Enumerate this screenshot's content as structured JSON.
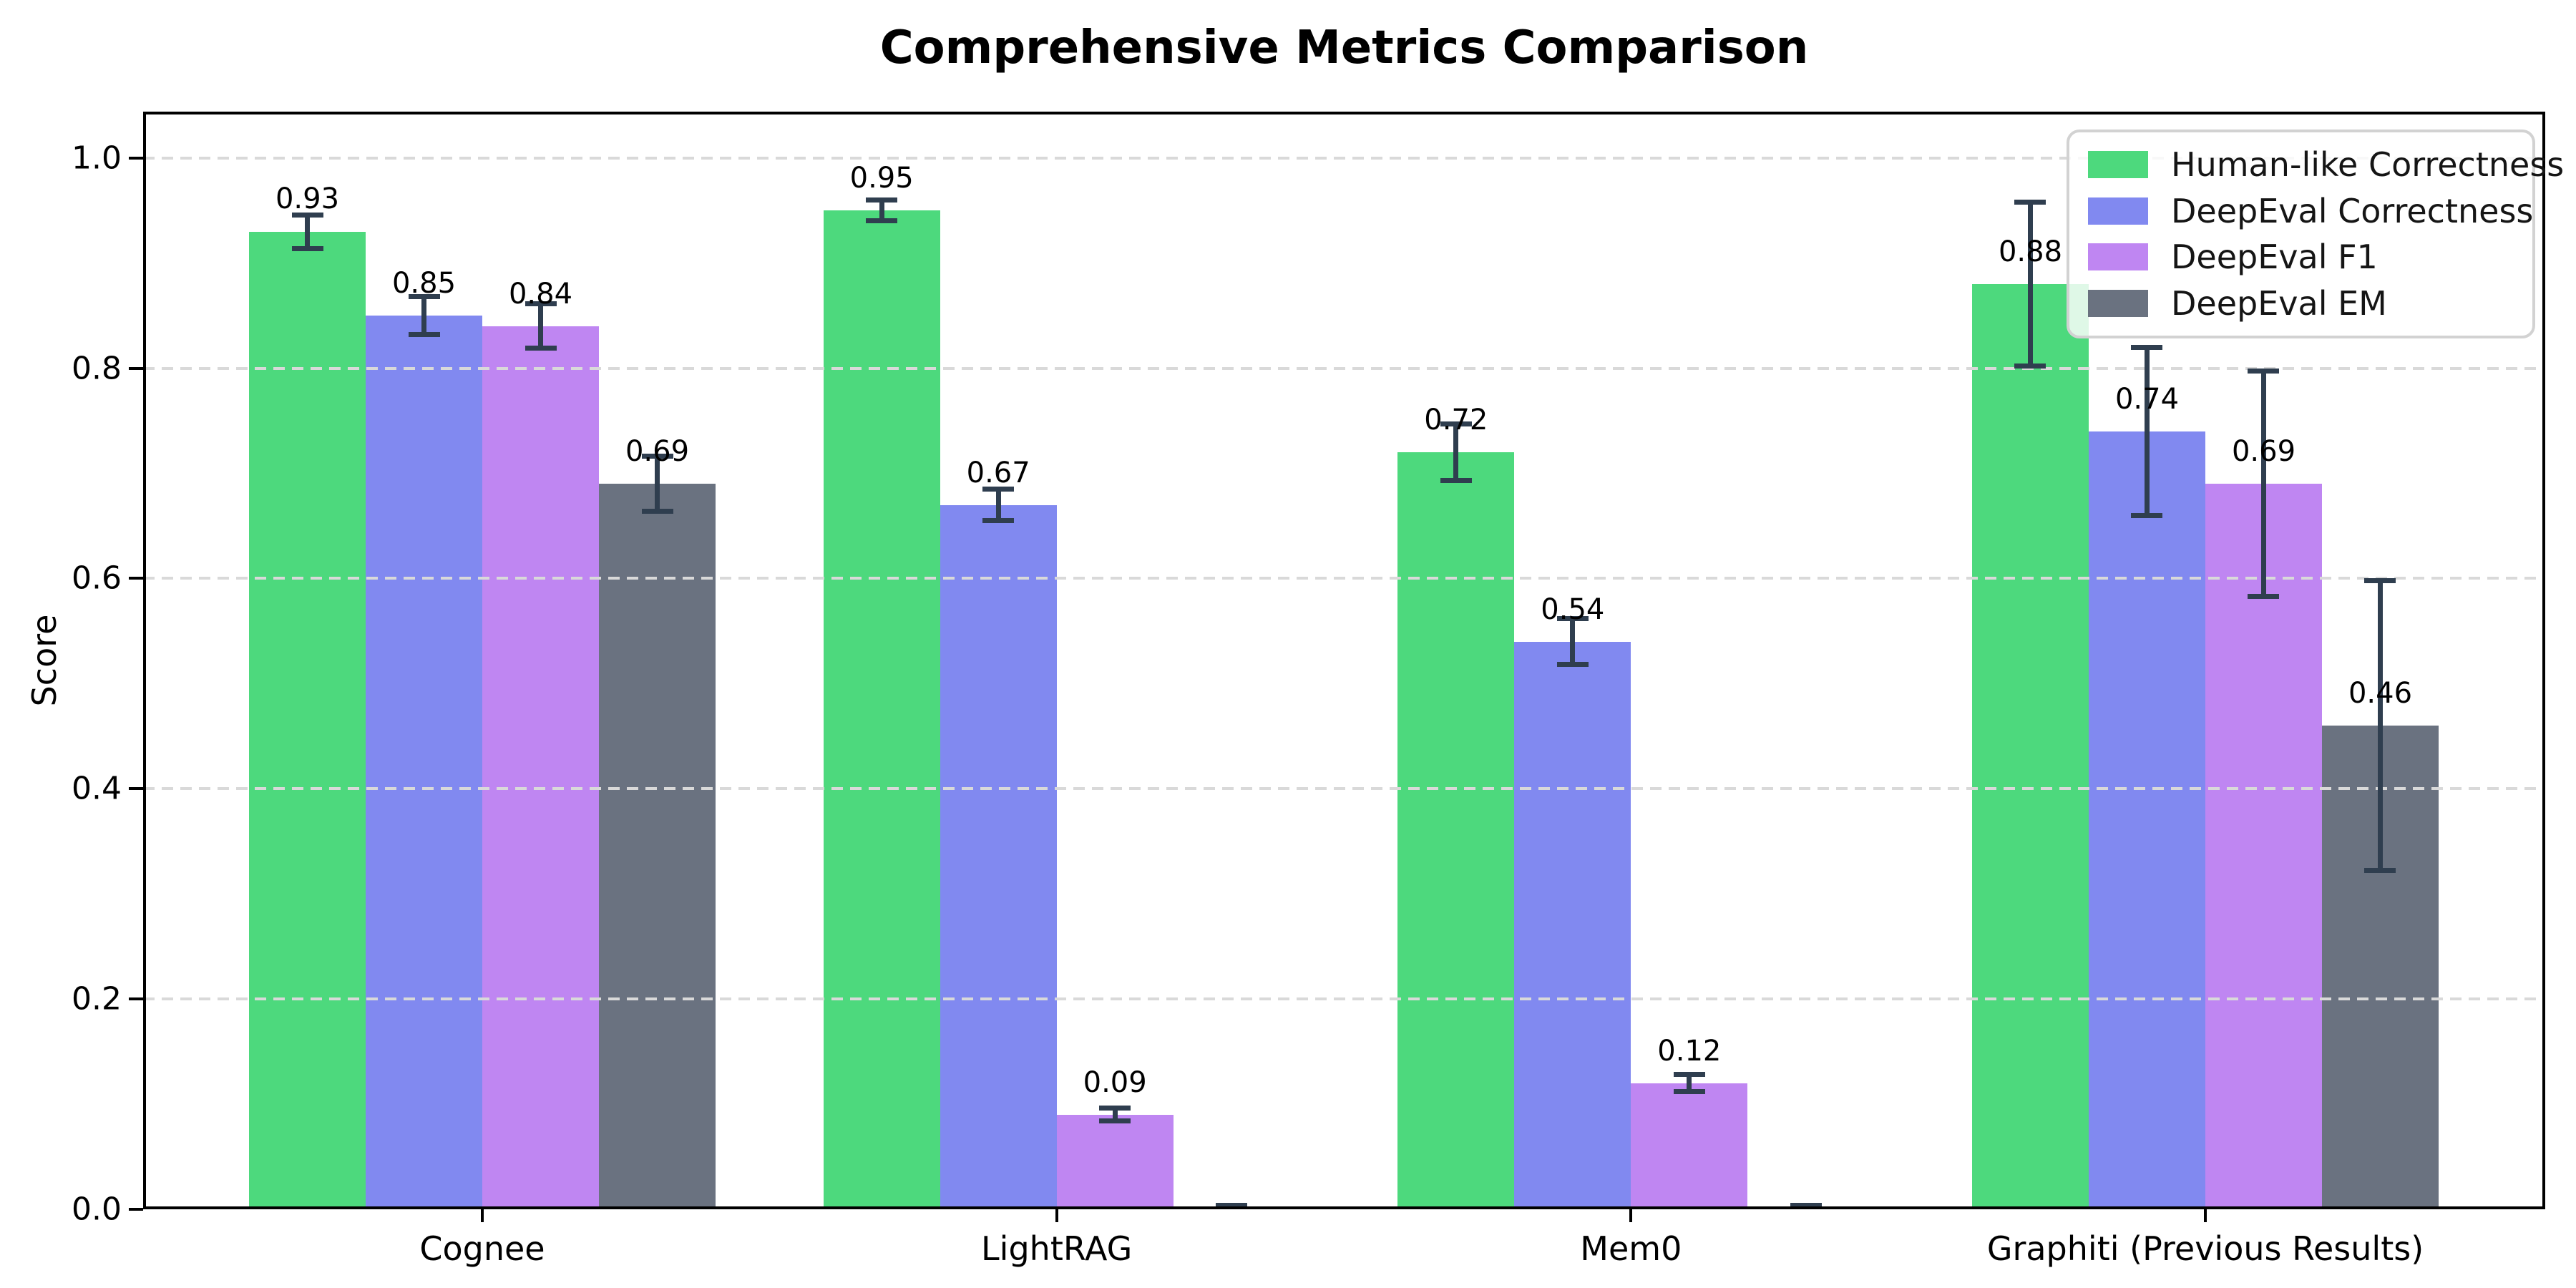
{
  "chart_data": {
    "type": "bar",
    "title": "Comprehensive Metrics Comparison",
    "ylabel": "Score",
    "categories": [
      "Cognee",
      "LightRAG",
      "Mem0",
      "Graphiti (Previous Results)"
    ],
    "series": [
      {
        "name": "Human-like Correctness",
        "color": "#4dd97d",
        "values": [
          0.93,
          0.95,
          0.72,
          0.88
        ],
        "errors": [
          0.016,
          0.01,
          0.027,
          0.078
        ],
        "labels": [
          "0.93",
          "0.95",
          "0.72",
          "0.88"
        ]
      },
      {
        "name": "DeepEval Correctness",
        "color": "#8189f0",
        "values": [
          0.85,
          0.67,
          0.54,
          0.74
        ],
        "errors": [
          0.018,
          0.015,
          0.022,
          0.08
        ],
        "labels": [
          "0.85",
          "0.67",
          "0.54",
          "0.74"
        ]
      },
      {
        "name": "DeepEval F1",
        "color": "#bf86f2",
        "values": [
          0.84,
          0.09,
          0.12,
          0.69
        ],
        "errors": [
          0.021,
          0.006,
          0.008,
          0.107
        ],
        "labels": [
          "0.84",
          "0.09",
          "0.12",
          "0.69"
        ]
      },
      {
        "name": "DeepEval EM",
        "color": "#6a7280",
        "values": [
          0.69,
          0.0,
          0.0,
          0.46
        ],
        "errors": [
          0.026,
          0.004,
          0.004,
          0.138
        ],
        "labels": [
          "0.69",
          "",
          "",
          "0.46"
        ]
      }
    ],
    "ylim": [
      0,
      1.044
    ],
    "yticks": [
      "0.0",
      "0.2",
      "0.4",
      "0.6",
      "0.8",
      "1.0"
    ],
    "grid": {
      "axis": "y",
      "style": "dashed",
      "color": "#d9d9d9",
      "above_bars": true
    },
    "legend_position": "upper right",
    "error_bar_color": "#2f3e4f",
    "background": "#ffffff"
  }
}
